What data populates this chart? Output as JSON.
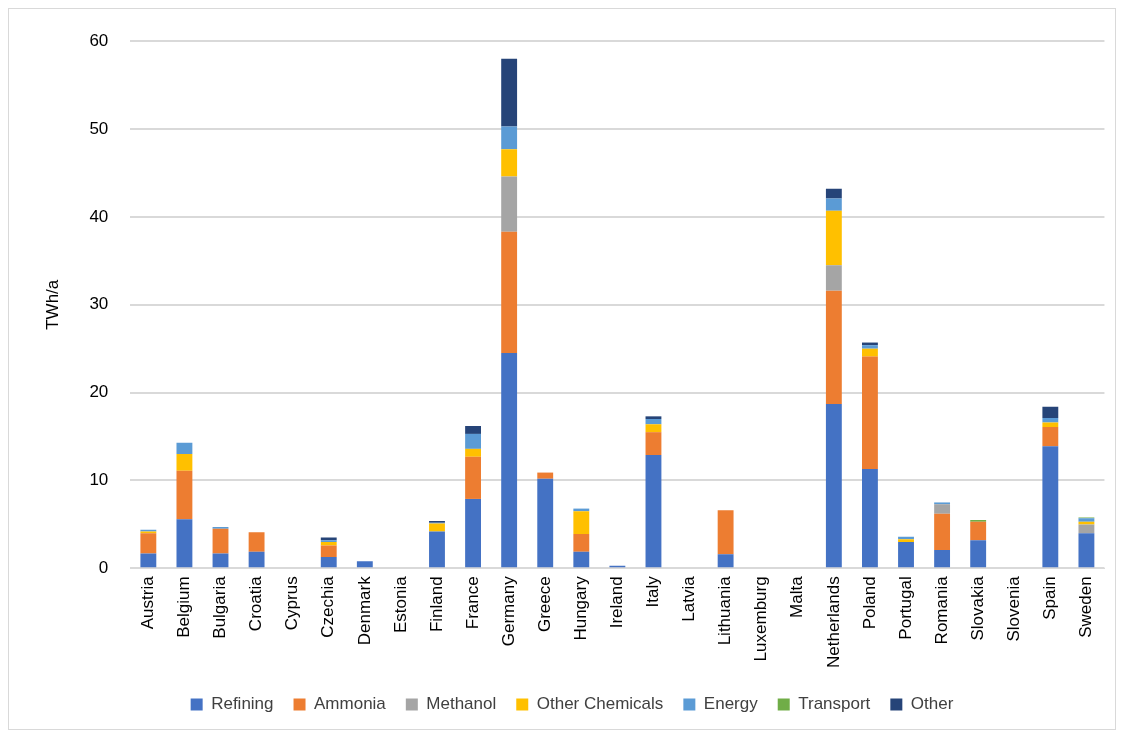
{
  "chart_data": {
    "type": "bar",
    "stacked": true,
    "ylabel": "TWh/a",
    "categories": [
      "Austria",
      "Belgium",
      "Bulgaria",
      "Croatia",
      "Cyprus",
      "Czechia",
      "Denmark",
      "Estonia",
      "Finland",
      "France",
      "Germany",
      "Greece",
      "Hungary",
      "Ireland",
      "Italy",
      "Latvia",
      "Lithuania",
      "Luxemburg",
      "Malta",
      "Netherlands",
      "Poland",
      "Portugal",
      "Romania",
      "Slovakia",
      "Slovenia",
      "Spain",
      "Sweden"
    ],
    "series": [
      {
        "name": "Refining",
        "color": "#4472c4",
        "values": [
          1.7,
          5.6,
          1.7,
          1.9,
          0,
          1.3,
          0.8,
          0,
          4.2,
          7.9,
          24.5,
          10.2,
          1.9,
          0.3,
          12.9,
          null,
          1.6,
          null,
          0,
          18.7,
          11.3,
          3.0,
          2.1,
          3.2,
          null,
          13.9,
          4.0
        ]
      },
      {
        "name": "Ammonia",
        "color": "#ed7d31",
        "values": [
          2.3,
          5.5,
          2.8,
          2.2,
          0,
          1.3,
          0,
          0,
          0,
          4.8,
          13.8,
          0.7,
          2.0,
          0,
          2.6,
          0,
          5.0,
          0,
          0,
          12.9,
          12.8,
          0,
          4.1,
          2.1,
          0,
          2.2,
          0
        ]
      },
      {
        "name": "Methanol",
        "color": "#a5a5a5",
        "values": [
          0,
          0,
          0,
          0,
          0,
          0,
          0,
          0,
          0,
          0,
          6.3,
          0,
          0,
          0,
          0,
          0,
          0,
          0,
          0,
          2.9,
          0,
          0,
          1.1,
          0,
          0,
          0,
          1.0
        ]
      },
      {
        "name": "Other Chemicals",
        "color": "#ffc000",
        "values": [
          0.2,
          1.9,
          0,
          0,
          0,
          0.4,
          0,
          0,
          0.9,
          0.9,
          3.1,
          0,
          2.6,
          0,
          0.9,
          0,
          0,
          0,
          0,
          6.2,
          0.9,
          0.3,
          0,
          0,
          0,
          0.5,
          0.3
        ]
      },
      {
        "name": "Energy",
        "color": "#5b9bd5",
        "values": [
          0.2,
          1.3,
          0.2,
          0,
          0,
          0.2,
          0,
          0,
          0.1,
          1.7,
          2.6,
          0,
          0.3,
          0,
          0.6,
          0,
          0,
          0,
          0,
          1.4,
          0.4,
          0.3,
          0.2,
          0,
          0,
          0.5,
          0.4
        ]
      },
      {
        "name": "Transport",
        "color": "#70ad47",
        "values": [
          0,
          0,
          0,
          0,
          0,
          0,
          0,
          0,
          0,
          0,
          0,
          0,
          0,
          0,
          0,
          0,
          0,
          0,
          0,
          0,
          0,
          0,
          0,
          0.2,
          0,
          0,
          0.1
        ]
      },
      {
        "name": "Other",
        "color": "#264478",
        "values": [
          0,
          0,
          0,
          0,
          0,
          0.3,
          0,
          0,
          0.2,
          0.9,
          7.7,
          0,
          0,
          0,
          0.3,
          0,
          0,
          0,
          0,
          1.1,
          0.3,
          0,
          0,
          0,
          0,
          1.3,
          0
        ]
      }
    ],
    "ylim": [
      0,
      60
    ],
    "yticks": [
      0,
      10,
      20,
      30,
      40,
      50,
      60
    ],
    "grid": "y",
    "legend": "bottom"
  }
}
